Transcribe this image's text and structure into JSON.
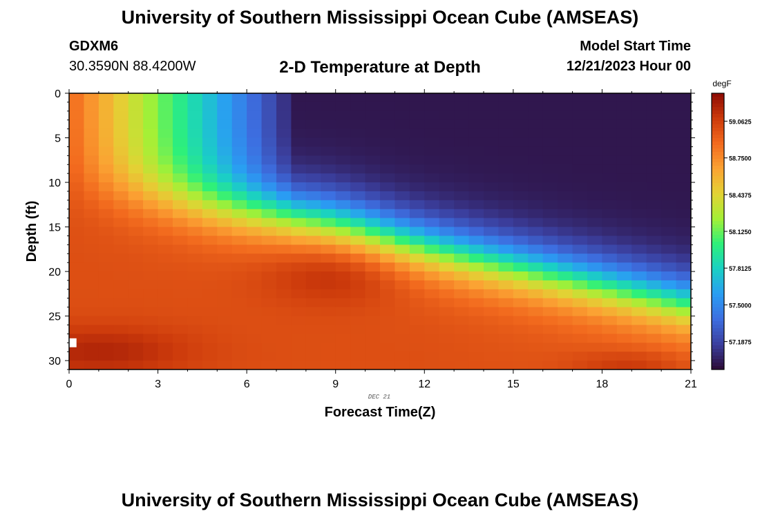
{
  "header": {
    "title": "University of Southern Mississippi Ocean Cube (AMSEAS)",
    "station_id": "GDXM6",
    "coords": "30.3590N  88.4200W",
    "plot_title": "2-D Temperature at Depth",
    "model_start_label": "Model Start Time",
    "model_start_value": "12/21/2023 Hour 00"
  },
  "footer": {
    "title": "University of Southern Mississippi Ocean Cube (AMSEAS)"
  },
  "colors": {
    "scale": [
      "#2c0a35",
      "#3b3f9e",
      "#3d6ee0",
      "#2a9df3",
      "#1ad0c4",
      "#2ef07a",
      "#a4f036",
      "#e3d234",
      "#fba233",
      "#f26a1e",
      "#cc3a0b",
      "#8c0a04"
    ]
  },
  "chart_data": {
    "type": "heatmap",
    "title": "2-D Temperature at Depth",
    "xlabel": "Forecast Time(Z)",
    "ylabel": "Depth (ft)",
    "date_label": "DEC 21",
    "x_ticks": [
      0,
      3,
      6,
      9,
      12,
      15,
      18,
      21
    ],
    "y_ticks": [
      0,
      5,
      10,
      15,
      20,
      25,
      30
    ],
    "xlim": [
      0,
      21
    ],
    "ylim": [
      0,
      31
    ],
    "colorbar": {
      "label": "degF",
      "min": 56.95,
      "max": 59.3,
      "tick_values": [
        57.1875,
        57.5,
        57.8125,
        58.125,
        58.4375,
        58.75,
        59.0625
      ],
      "tick_labels": [
        "57.1875",
        "57.5000",
        "57.8125",
        "58.1250",
        "58.4375",
        "58.7500",
        "59.0625"
      ]
    },
    "value_range": [
      56.95,
      59.25
    ],
    "description": "Warm (~59 degF) water near surface at start and at depth; cold (~57 degF) core near surface around hours 13-15; thermocline deepening from ~10 ft to ~23 ft over the forecast."
  }
}
